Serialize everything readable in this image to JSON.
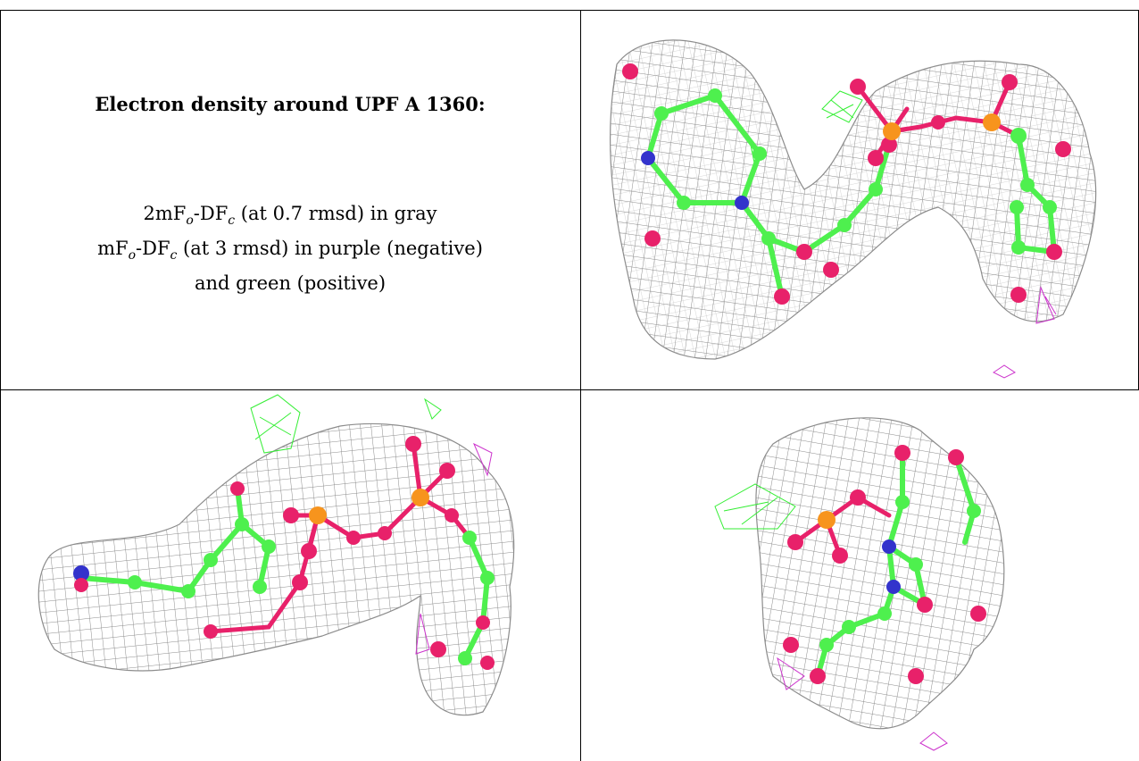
{
  "caption": {
    "title": "Electron density around UPF A 1360:",
    "line1_prefix": "2mF",
    "line1_mid": "-DF",
    "line1_suffix": " (at 0.7 rmsd) in gray",
    "line2_prefix": "mF",
    "line2_mid": "-DF",
    "line2_suffix": " (at 3 rmsd) in purple (negative)",
    "line3": "and green (positive)",
    "sub_o": "o",
    "sub_c": "c"
  },
  "colors": {
    "mesh_gray": "#8c8c8c",
    "positive_green": "#33ee33",
    "negative_purple": "#cc33cc",
    "carbon": "#4ef04e",
    "oxygen": "#e8216a",
    "nitrogen": "#3333cc",
    "phosphorus": "#f7941d"
  },
  "panels": [
    {
      "view": "top-right"
    },
    {
      "view": "bottom-left"
    },
    {
      "view": "bottom-right"
    }
  ]
}
